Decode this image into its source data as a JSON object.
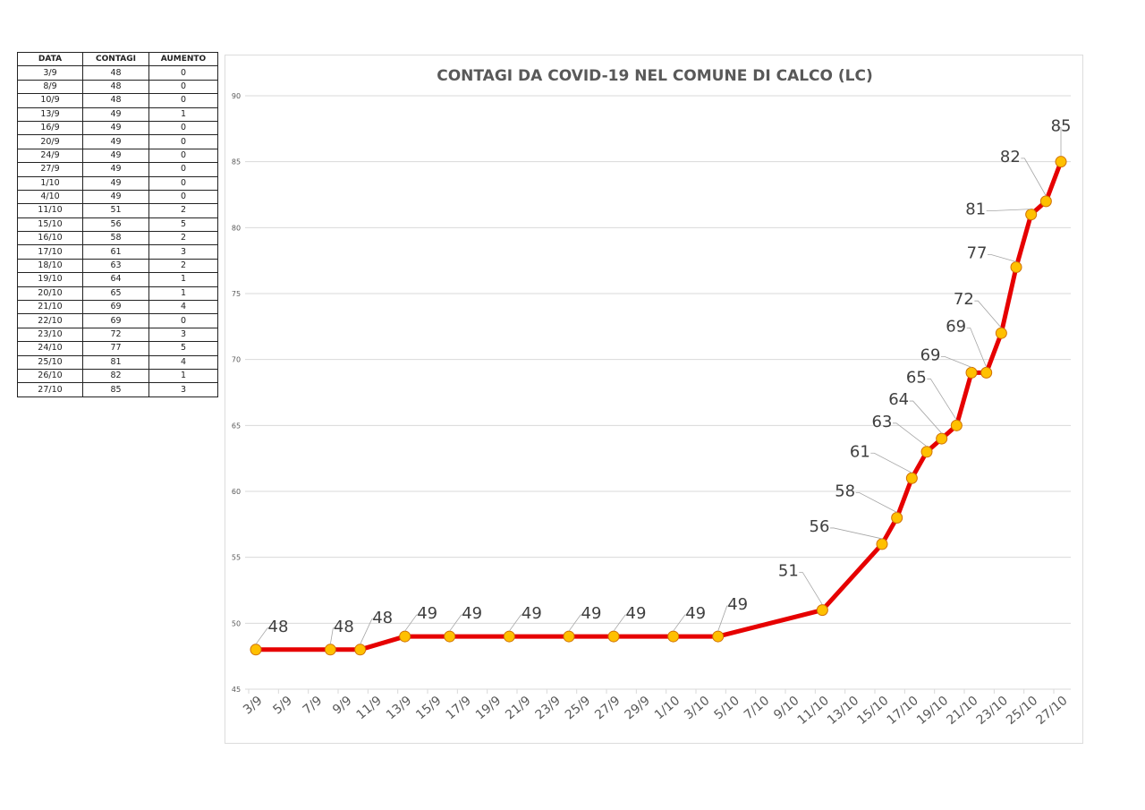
{
  "table": {
    "headers": [
      "DATA",
      "CONTAGI",
      "AUMENTO"
    ],
    "rows": [
      [
        "3/9",
        "48",
        "0"
      ],
      [
        "8/9",
        "48",
        "0"
      ],
      [
        "10/9",
        "48",
        "0"
      ],
      [
        "13/9",
        "49",
        "1"
      ],
      [
        "16/9",
        "49",
        "0"
      ],
      [
        "20/9",
        "49",
        "0"
      ],
      [
        "24/9",
        "49",
        "0"
      ],
      [
        "27/9",
        "49",
        "0"
      ],
      [
        "1/10",
        "49",
        "0"
      ],
      [
        "4/10",
        "49",
        "0"
      ],
      [
        "11/10",
        "51",
        "2"
      ],
      [
        "15/10",
        "56",
        "5"
      ],
      [
        "16/10",
        "58",
        "2"
      ],
      [
        "17/10",
        "61",
        "3"
      ],
      [
        "18/10",
        "63",
        "2"
      ],
      [
        "19/10",
        "64",
        "1"
      ],
      [
        "20/10",
        "65",
        "1"
      ],
      [
        "21/10",
        "69",
        "4"
      ],
      [
        "22/10",
        "69",
        "0"
      ],
      [
        "23/10",
        "72",
        "3"
      ],
      [
        "24/10",
        "77",
        "5"
      ],
      [
        "25/10",
        "81",
        "4"
      ],
      [
        "26/10",
        "82",
        "1"
      ],
      [
        "27/10",
        "85",
        "3"
      ]
    ]
  },
  "colors": {
    "line": "#e60000",
    "marker_fill": "#ffc000",
    "marker_stroke": "#d07000",
    "grid": "#d9d9d9",
    "title": "#595959",
    "axis_text": "#595959",
    "label_text": "#404040"
  },
  "chart_data": {
    "type": "line",
    "title": "CONTAGI DA COVID-19 NEL COMUNE DI CALCO (LC)",
    "xlabel": "",
    "ylabel": "",
    "ylim": [
      45,
      90
    ],
    "yticks": [
      45,
      50,
      55,
      60,
      65,
      70,
      75,
      80,
      85,
      90
    ],
    "grid": true,
    "legend": "none",
    "x_tick_labels": [
      "3/9",
      "5/9",
      "7/9",
      "9/9",
      "11/9",
      "13/9",
      "15/9",
      "17/9",
      "19/9",
      "21/9",
      "23/9",
      "25/9",
      "27/9",
      "29/9",
      "1/10",
      "3/10",
      "5/10",
      "7/10",
      "9/10",
      "11/10",
      "13/10",
      "15/10",
      "17/10",
      "19/10",
      "21/10",
      "23/10",
      "25/10",
      "27/10"
    ],
    "x": [
      "3/9",
      "8/9",
      "10/9",
      "13/9",
      "16/9",
      "20/9",
      "24/9",
      "27/9",
      "1/10",
      "4/10",
      "11/10",
      "15/10",
      "16/10",
      "17/10",
      "18/10",
      "19/10",
      "20/10",
      "21/10",
      "22/10",
      "23/10",
      "24/10",
      "25/10",
      "26/10",
      "27/10"
    ],
    "day_index": [
      0,
      5,
      7,
      10,
      13,
      17,
      21,
      24,
      28,
      31,
      38,
      42,
      43,
      44,
      45,
      46,
      47,
      48,
      49,
      50,
      51,
      52,
      53,
      54
    ],
    "series": [
      {
        "name": "Contagi",
        "values": [
          48,
          48,
          48,
          49,
          49,
          49,
          49,
          49,
          49,
          49,
          51,
          56,
          58,
          61,
          63,
          64,
          65,
          69,
          69,
          72,
          77,
          81,
          82,
          85
        ]
      }
    ],
    "data_labels": true
  }
}
